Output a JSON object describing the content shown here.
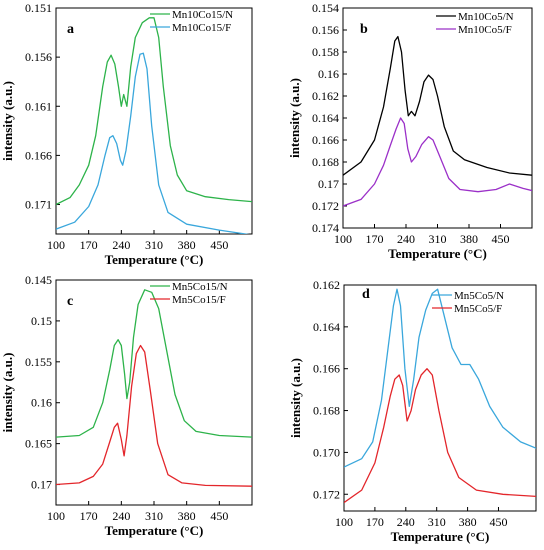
{
  "chart_data": [
    {
      "id": "a",
      "type": "line",
      "panel_label": "a",
      "xlabel": "Temperature  (°C)",
      "ylabel": "intensity (a.u.)",
      "xlim": [
        100,
        520
      ],
      "ylim": [
        0.174,
        0.151
      ],
      "x_ticks": [
        100,
        170,
        240,
        310,
        380,
        450
      ],
      "y_ticks": [
        0.151,
        0.156,
        0.161,
        0.166,
        0.171
      ],
      "y_tick_labels": [
        "0.151",
        "0.156",
        "0.161",
        "0.166",
        "0.171"
      ],
      "legend": "top-right",
      "series": [
        {
          "name": "Mn10Co15/N",
          "color": "#2db34a",
          "points": [
            [
              100,
              0.171
            ],
            [
              130,
              0.1703
            ],
            [
              150,
              0.169
            ],
            [
              170,
              0.167
            ],
            [
              185,
              0.164
            ],
            [
              200,
              0.159
            ],
            [
              210,
              0.1565
            ],
            [
              218,
              0.1558
            ],
            [
              226,
              0.1567
            ],
            [
              234,
              0.159
            ],
            [
              240,
              0.161
            ],
            [
              245,
              0.1598
            ],
            [
              252,
              0.161
            ],
            [
              260,
              0.157
            ],
            [
              270,
              0.154
            ],
            [
              285,
              0.1525
            ],
            [
              300,
              0.152
            ],
            [
              310,
              0.152
            ],
            [
              320,
              0.154
            ],
            [
              330,
              0.159
            ],
            [
              345,
              0.165
            ],
            [
              360,
              0.168
            ],
            [
              380,
              0.1696
            ],
            [
              420,
              0.1702
            ],
            [
              470,
              0.1705
            ],
            [
              520,
              0.1707
            ]
          ]
        },
        {
          "name": "Mn10Co15/F",
          "color": "#3aa7dc",
          "points": [
            [
              100,
              0.1735
            ],
            [
              140,
              0.1728
            ],
            [
              170,
              0.1712
            ],
            [
              190,
              0.169
            ],
            [
              205,
              0.166
            ],
            [
              215,
              0.1642
            ],
            [
              222,
              0.164
            ],
            [
              230,
              0.1648
            ],
            [
              238,
              0.1665
            ],
            [
              243,
              0.167
            ],
            [
              250,
              0.1655
            ],
            [
              260,
              0.162
            ],
            [
              270,
              0.158
            ],
            [
              280,
              0.1557
            ],
            [
              287,
              0.1556
            ],
            [
              295,
              0.1572
            ],
            [
              305,
              0.163
            ],
            [
              320,
              0.169
            ],
            [
              340,
              0.1718
            ],
            [
              380,
              0.173
            ],
            [
              450,
              0.1736
            ],
            [
              520,
              0.1741
            ]
          ]
        }
      ]
    },
    {
      "id": "b",
      "type": "line",
      "panel_label": "b",
      "xlabel": "Temperature  (°C)",
      "ylabel": "intensity (a.u.)",
      "xlim": [
        100,
        520
      ],
      "ylim": [
        0.174,
        0.154
      ],
      "x_ticks": [
        100,
        170,
        240,
        310,
        380,
        450
      ],
      "y_ticks": [
        0.154,
        0.156,
        0.158,
        0.16,
        0.162,
        0.164,
        0.166,
        0.168,
        0.17,
        0.172,
        0.174
      ],
      "y_tick_labels": [
        "0.154",
        "0.156",
        "0.158",
        "0.16",
        "0.162",
        "0.164",
        "0.166",
        "0.168",
        "0.17",
        "0.172",
        "0.174"
      ],
      "legend": "top-right",
      "series": [
        {
          "name": "Mn10Co5/N",
          "color": "#000000",
          "points": [
            [
              100,
              0.1692
            ],
            [
              140,
              0.168
            ],
            [
              170,
              0.166
            ],
            [
              190,
              0.163
            ],
            [
              205,
              0.1595
            ],
            [
              215,
              0.157
            ],
            [
              222,
              0.1566
            ],
            [
              230,
              0.158
            ],
            [
              238,
              0.1615
            ],
            [
              245,
              0.1638
            ],
            [
              252,
              0.1634
            ],
            [
              260,
              0.1638
            ],
            [
              270,
              0.1625
            ],
            [
              280,
              0.1607
            ],
            [
              290,
              0.1601
            ],
            [
              300,
              0.1605
            ],
            [
              310,
              0.162
            ],
            [
              325,
              0.1648
            ],
            [
              345,
              0.167
            ],
            [
              370,
              0.1678
            ],
            [
              420,
              0.1685
            ],
            [
              470,
              0.169
            ],
            [
              520,
              0.1692
            ]
          ]
        },
        {
          "name": "Mn10Co5/F",
          "color": "#9b30c8",
          "points": [
            [
              100,
              0.172
            ],
            [
              140,
              0.1714
            ],
            [
              170,
              0.17
            ],
            [
              190,
              0.1683
            ],
            [
              205,
              0.1665
            ],
            [
              218,
              0.165
            ],
            [
              228,
              0.164
            ],
            [
              236,
              0.1645
            ],
            [
              244,
              0.1668
            ],
            [
              252,
              0.168
            ],
            [
              262,
              0.1675
            ],
            [
              275,
              0.1664
            ],
            [
              290,
              0.1657
            ],
            [
              300,
              0.166
            ],
            [
              315,
              0.1675
            ],
            [
              335,
              0.1695
            ],
            [
              360,
              0.1705
            ],
            [
              400,
              0.1707
            ],
            [
              440,
              0.1705
            ],
            [
              470,
              0.17
            ],
            [
              500,
              0.1704
            ],
            [
              520,
              0.1706
            ]
          ]
        }
      ]
    },
    {
      "id": "c",
      "type": "line",
      "panel_label": "c",
      "xlabel": "Temperature  (°C)",
      "ylabel": "intensity (a.u.)",
      "xlim": [
        100,
        520
      ],
      "ylim": [
        0.1725,
        0.145
      ],
      "x_ticks": [
        100,
        170,
        240,
        310,
        380,
        450
      ],
      "y_ticks": [
        0.145,
        0.15,
        0.155,
        0.16,
        0.165,
        0.17
      ],
      "y_tick_labels": [
        "0.145",
        "0.15",
        "0.155",
        "0.16",
        "0.165",
        "0.17"
      ],
      "legend": "top-right",
      "series": [
        {
          "name": "Mn5Co15/N",
          "color": "#2db34a",
          "points": [
            [
              100,
              0.1642
            ],
            [
              150,
              0.164
            ],
            [
              180,
              0.163
            ],
            [
              200,
              0.16
            ],
            [
              215,
              0.156
            ],
            [
              225,
              0.153
            ],
            [
              233,
              0.1523
            ],
            [
              240,
              0.153
            ],
            [
              247,
              0.1565
            ],
            [
              252,
              0.1595
            ],
            [
              258,
              0.1575
            ],
            [
              266,
              0.152
            ],
            [
              276,
              0.148
            ],
            [
              290,
              0.1462
            ],
            [
              305,
              0.1465
            ],
            [
              320,
              0.1485
            ],
            [
              335,
              0.153
            ],
            [
              355,
              0.159
            ],
            [
              375,
              0.1622
            ],
            [
              400,
              0.1635
            ],
            [
              450,
              0.164
            ],
            [
              520,
              0.1642
            ]
          ]
        },
        {
          "name": "Mn5Co15/F",
          "color": "#e3262b",
          "points": [
            [
              100,
              0.17
            ],
            [
              150,
              0.1698
            ],
            [
              180,
              0.169
            ],
            [
              200,
              0.1675
            ],
            [
              215,
              0.1648
            ],
            [
              225,
              0.163
            ],
            [
              232,
              0.1625
            ],
            [
              240,
              0.1645
            ],
            [
              246,
              0.1665
            ],
            [
              252,
              0.164
            ],
            [
              262,
              0.158
            ],
            [
              272,
              0.154
            ],
            [
              281,
              0.153
            ],
            [
              290,
              0.1538
            ],
            [
              302,
              0.1585
            ],
            [
              318,
              0.165
            ],
            [
              340,
              0.1688
            ],
            [
              370,
              0.1698
            ],
            [
              420,
              0.1701
            ],
            [
              520,
              0.1702
            ]
          ]
        }
      ]
    },
    {
      "id": "d",
      "type": "line",
      "panel_label": "d",
      "xlabel": "Temperature  (°C)",
      "ylabel": "intensity (a.u.)",
      "xlim": [
        100,
        535
      ],
      "ylim": [
        0.1728,
        0.162
      ],
      "x_ticks": [
        100,
        170,
        240,
        310,
        380,
        450
      ],
      "y_ticks": [
        0.162,
        0.164,
        0.166,
        0.168,
        0.17,
        0.172
      ],
      "y_tick_labels": [
        "0.162",
        "0.164",
        "0.166",
        "0.168",
        "0.170",
        "0.172"
      ],
      "legend": "top-right",
      "series": [
        {
          "name": "Mn5Co5/N",
          "color": "#3aa7dc",
          "points": [
            [
              100,
              0.1707
            ],
            [
              140,
              0.1703
            ],
            [
              165,
              0.1695
            ],
            [
              185,
              0.1675
            ],
            [
              200,
              0.165
            ],
            [
              212,
              0.163
            ],
            [
              220,
              0.1622
            ],
            [
              228,
              0.163
            ],
            [
              238,
              0.166
            ],
            [
              248,
              0.1678
            ],
            [
              258,
              0.1665
            ],
            [
              270,
              0.1645
            ],
            [
              285,
              0.1632
            ],
            [
              300,
              0.1624
            ],
            [
              312,
              0.1622
            ],
            [
              325,
              0.1633
            ],
            [
              345,
              0.165
            ],
            [
              365,
              0.1658
            ],
            [
              385,
              0.1658
            ],
            [
              405,
              0.1665
            ],
            [
              430,
              0.1678
            ],
            [
              460,
              0.1688
            ],
            [
              500,
              0.1695
            ],
            [
              535,
              0.1698
            ]
          ]
        },
        {
          "name": "Mn5Co5/F",
          "color": "#e3262b",
          "points": [
            [
              100,
              0.1724
            ],
            [
              140,
              0.1718
            ],
            [
              170,
              0.1705
            ],
            [
              190,
              0.1688
            ],
            [
              205,
              0.1673
            ],
            [
              215,
              0.1665
            ],
            [
              225,
              0.1663
            ],
            [
              233,
              0.1668
            ],
            [
              243,
              0.1685
            ],
            [
              252,
              0.168
            ],
            [
              262,
              0.167
            ],
            [
              275,
              0.1663
            ],
            [
              288,
              0.166
            ],
            [
              300,
              0.1663
            ],
            [
              315,
              0.168
            ],
            [
              335,
              0.17
            ],
            [
              360,
              0.1712
            ],
            [
              400,
              0.1718
            ],
            [
              460,
              0.172
            ],
            [
              535,
              0.1721
            ]
          ]
        }
      ]
    }
  ]
}
